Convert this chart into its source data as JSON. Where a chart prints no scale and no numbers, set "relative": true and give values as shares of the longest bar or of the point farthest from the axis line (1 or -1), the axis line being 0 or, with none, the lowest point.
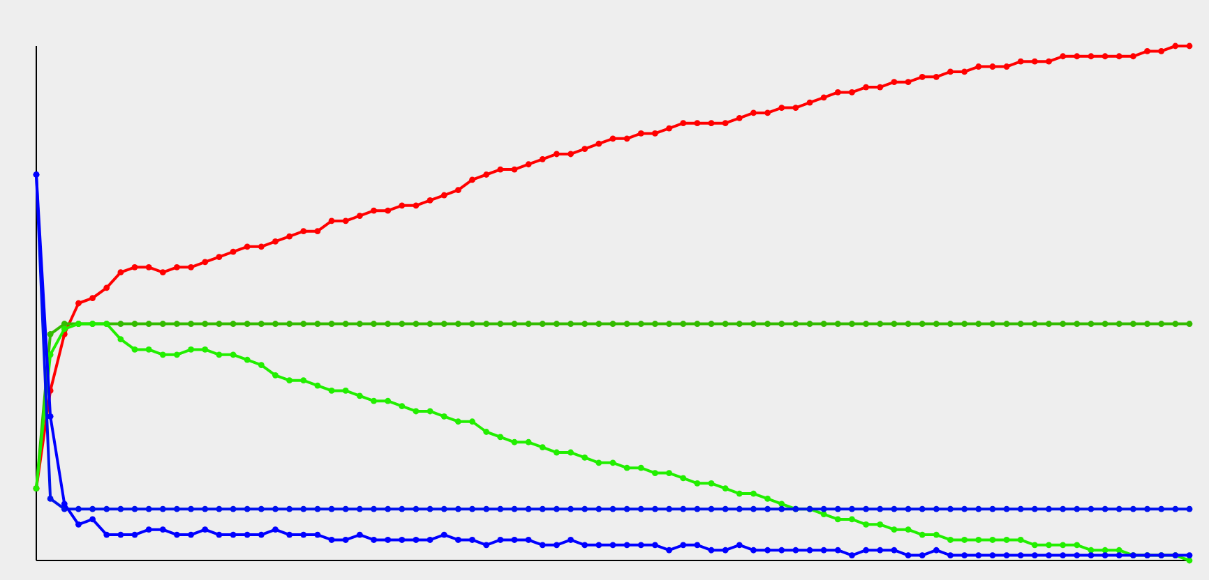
{
  "chart_data": {
    "type": "line",
    "relative": true,
    "marker": "circle",
    "line_style": "solid",
    "grid": false,
    "categories": [
      null,
      null,
      null,
      null,
      null,
      null,
      null,
      null,
      null,
      null,
      null,
      null,
      null,
      null,
      null,
      null,
      null,
      null,
      null,
      null,
      null,
      null,
      null,
      null,
      null,
      null,
      null,
      null,
      null,
      null,
      null,
      null,
      null,
      null,
      null,
      null,
      null,
      null,
      null,
      null,
      null,
      null,
      null,
      null,
      null,
      null,
      null,
      null,
      null,
      null,
      null,
      null,
      null,
      null,
      null,
      null,
      null,
      null,
      null,
      null,
      null,
      null,
      null,
      null,
      null,
      null,
      null,
      null,
      null,
      null,
      null,
      null,
      null,
      null,
      null,
      null,
      null,
      null,
      null,
      null,
      null,
      null,
      null
    ],
    "series": [
      {
        "color": "#ff0000",
        "values": [
          0.14,
          0.33,
          0.44,
          0.5,
          0.51,
          0.53,
          0.56,
          0.57,
          0.57,
          0.56,
          0.57,
          0.57,
          0.58,
          0.59,
          0.6,
          0.61,
          0.61,
          0.62,
          0.63,
          0.64,
          0.64,
          0.66,
          0.66,
          0.67,
          0.68,
          0.68,
          0.69,
          0.69,
          0.7,
          0.71,
          0.72,
          0.74,
          0.75,
          0.76,
          0.76,
          0.77,
          0.78,
          0.79,
          0.79,
          0.8,
          0.81,
          0.82,
          0.82,
          0.83,
          0.83,
          0.84,
          0.85,
          0.85,
          0.85,
          0.85,
          0.86,
          0.87,
          0.87,
          0.88,
          0.88,
          0.89,
          0.9,
          0.91,
          0.91,
          0.92,
          0.92,
          0.93,
          0.93,
          0.94,
          0.94,
          0.95,
          0.95,
          0.96,
          0.96,
          0.96,
          0.97,
          0.97,
          0.97,
          0.98,
          0.98,
          0.98,
          0.98,
          0.98,
          0.98,
          0.99,
          0.99,
          1.0,
          1
        ]
      },
      {
        "color": "#33bb00",
        "values": [
          0.14,
          0.44,
          0.46,
          0.46,
          0.46,
          0.46,
          0.46,
          0.46,
          0.46,
          0.46,
          0.46,
          0.46,
          0.46,
          0.46,
          0.46,
          0.46,
          0.46,
          0.46,
          0.46,
          0.46,
          0.46,
          0.46,
          0.46,
          0.46,
          0.46,
          0.46,
          0.46,
          0.46,
          0.46,
          0.46,
          0.46,
          0.46,
          0.46,
          0.46,
          0.46,
          0.46,
          0.46,
          0.46,
          0.46,
          0.46,
          0.46,
          0.46,
          0.46,
          0.46,
          0.46,
          0.46,
          0.46,
          0.46,
          0.46,
          0.46,
          0.46,
          0.46,
          0.46,
          0.46,
          0.46,
          0.46,
          0.46,
          0.46,
          0.46,
          0.46,
          0.46,
          0.46,
          0.46,
          0.46,
          0.46,
          0.46,
          0.46,
          0.46,
          0.46,
          0.46,
          0.46,
          0.46,
          0.46,
          0.46,
          0.46,
          0.46,
          0.46,
          0.46,
          0.46,
          0.46,
          0.46,
          0.46,
          0.46
        ]
      },
      {
        "color": "#22ee00",
        "values": [
          0.14,
          0.4,
          0.45,
          0.46,
          0.46,
          0.46,
          0.43,
          0.41,
          0.41,
          0.4,
          0.4,
          0.41,
          0.41,
          0.4,
          0.4,
          0.39,
          0.38,
          0.36,
          0.35,
          0.35,
          0.34,
          0.33,
          0.33,
          0.32,
          0.31,
          0.31,
          0.3,
          0.29,
          0.29,
          0.28,
          0.27,
          0.27,
          0.25,
          0.24,
          0.23,
          0.23,
          0.22,
          0.21,
          0.21,
          0.2,
          0.19,
          0.19,
          0.18,
          0.18,
          0.17,
          0.17,
          0.16,
          0.15,
          0.15,
          0.14,
          0.13,
          0.13,
          0.12,
          0.11,
          0.1,
          0.1,
          0.09,
          0.08,
          0.08,
          0.07,
          0.07,
          0.06,
          0.06,
          0.05,
          0.05,
          0.04,
          0.04,
          0.04,
          0.04,
          0.04,
          0.04,
          0.03,
          0.03,
          0.03,
          0.03,
          0.02,
          0.02,
          0.02,
          0.01,
          0.01,
          0.01,
          0.01,
          0.0
        ]
      },
      {
        "color": "#0011ee",
        "values": [
          0.75,
          0.12,
          0.1,
          0.1,
          0.1,
          0.1,
          0.1,
          0.1,
          0.1,
          0.1,
          0.1,
          0.1,
          0.1,
          0.1,
          0.1,
          0.1,
          0.1,
          0.1,
          0.1,
          0.1,
          0.1,
          0.1,
          0.1,
          0.1,
          0.1,
          0.1,
          0.1,
          0.1,
          0.1,
          0.1,
          0.1,
          0.1,
          0.1,
          0.1,
          0.1,
          0.1,
          0.1,
          0.1,
          0.1,
          0.1,
          0.1,
          0.1,
          0.1,
          0.1,
          0.1,
          0.1,
          0.1,
          0.1,
          0.1,
          0.1,
          0.1,
          0.1,
          0.1,
          0.1,
          0.1,
          0.1,
          0.1,
          0.1,
          0.1,
          0.1,
          0.1,
          0.1,
          0.1,
          0.1,
          0.1,
          0.1,
          0.1,
          0.1,
          0.1,
          0.1,
          0.1,
          0.1,
          0.1,
          0.1,
          0.1,
          0.1,
          0.1,
          0.1,
          0.1,
          0.1,
          0.1,
          0.1,
          0.1
        ]
      },
      {
        "color": "#0000ff",
        "values": [
          0.75,
          0.28,
          0.11,
          0.07,
          0.08,
          0.05,
          0.05,
          0.05,
          0.06,
          0.06,
          0.05,
          0.05,
          0.06,
          0.05,
          0.05,
          0.05,
          0.05,
          0.06,
          0.05,
          0.05,
          0.05,
          0.04,
          0.04,
          0.05,
          0.04,
          0.04,
          0.04,
          0.04,
          0.04,
          0.05,
          0.04,
          0.04,
          0.03,
          0.04,
          0.04,
          0.04,
          0.03,
          0.03,
          0.04,
          0.03,
          0.03,
          0.03,
          0.03,
          0.03,
          0.03,
          0.02,
          0.03,
          0.03,
          0.02,
          0.02,
          0.03,
          0.02,
          0.02,
          0.02,
          0.02,
          0.02,
          0.02,
          0.02,
          0.01,
          0.02,
          0.02,
          0.02,
          0.01,
          0.01,
          0.02,
          0.01,
          0.01,
          0.01,
          0.01,
          0.01,
          0.01,
          0.01,
          0.01,
          0.01,
          0.01,
          0.01,
          0.01,
          0.01,
          0.01,
          0.01,
          0.01,
          0.01,
          0.01
        ]
      }
    ]
  }
}
